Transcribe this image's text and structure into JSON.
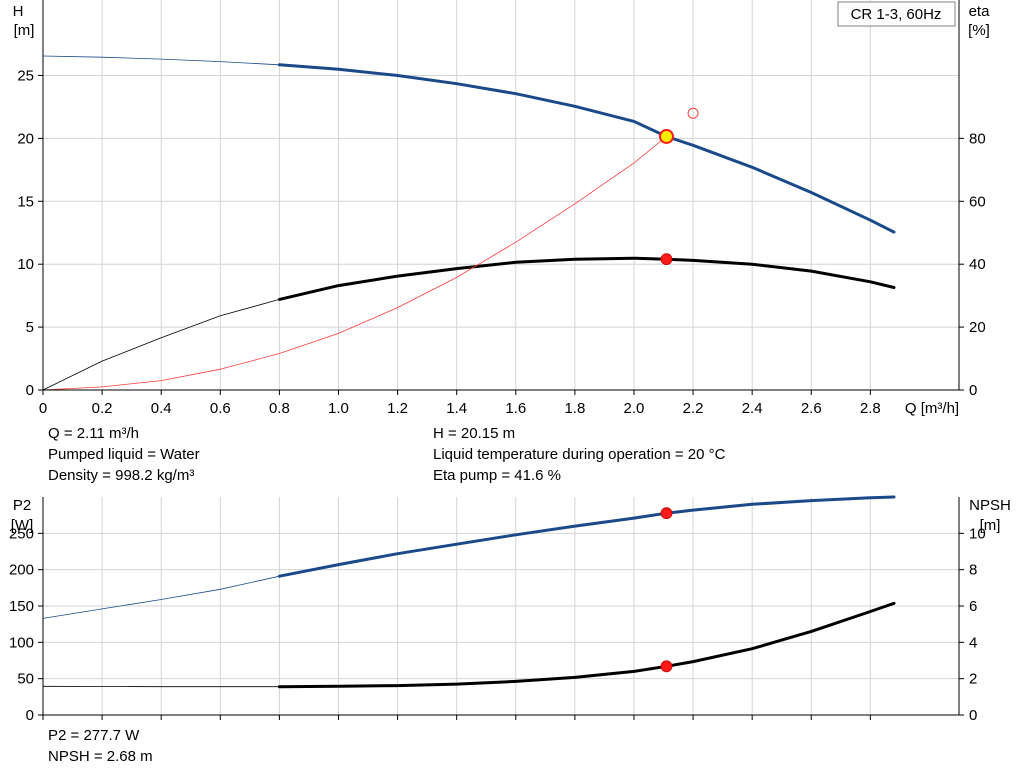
{
  "chart_data": [
    {
      "type": "line",
      "legend_box": "CR 1-3, 60Hz",
      "xlabel": "Q [m³/h]",
      "x_ticks": [
        "0",
        "0.2",
        "0.4",
        "0.6",
        "0.8",
        "1.0",
        "1.2",
        "1.4",
        "1.6",
        "1.8",
        "2.0",
        "2.2",
        "2.4",
        "2.6",
        "2.8"
      ],
      "xlim": [
        0,
        3.1
      ],
      "left_axis": {
        "label_line1": "H",
        "label_line2": "[m]",
        "range": [
          0,
          31
        ],
        "ticks": [
          "0",
          "5",
          "10",
          "15",
          "20",
          "25"
        ]
      },
      "right_axis": {
        "label_line1": "eta",
        "label_line2": "[%]",
        "range": [
          0,
          124
        ],
        "ticks": [
          "0",
          "20",
          "40",
          "60",
          "80"
        ]
      },
      "series": [
        {
          "color": "#1a4a8a",
          "axis": "left",
          "x": [
            0,
            0.2,
            0.4,
            0.6,
            0.8,
            1.0,
            1.2,
            1.4,
            1.6,
            1.8,
            2.0,
            2.11,
            2.2,
            2.4,
            2.6,
            2.8,
            2.88
          ],
          "y": [
            26.55,
            26.45,
            26.3,
            26.1,
            25.85,
            25.5,
            25.0,
            24.35,
            23.55,
            22.55,
            21.35,
            20.15,
            19.45,
            17.7,
            15.7,
            13.5,
            12.55
          ],
          "thin_until_x": 0.8
        },
        {
          "color": "#000000",
          "axis": "right",
          "x": [
            0,
            0.2,
            0.4,
            0.6,
            0.8,
            1.0,
            1.2,
            1.4,
            1.6,
            1.8,
            2.0,
            2.11,
            2.2,
            2.4,
            2.6,
            2.8,
            2.88
          ],
          "y": [
            0,
            9.2,
            16.6,
            23.6,
            28.8,
            33.2,
            36.2,
            38.6,
            40.6,
            41.6,
            41.9,
            41.6,
            41.2,
            40.0,
            37.8,
            34.4,
            32.6
          ],
          "thin_until_x": 0.8
        },
        {
          "color": "#ff3b3b",
          "axis": "left",
          "thin": true,
          "x": [
            0,
            0.2,
            0.4,
            0.6,
            0.8,
            1.0,
            1.2,
            1.4,
            1.6,
            1.8,
            2.0,
            2.11
          ],
          "y": [
            0,
            0.25,
            0.75,
            1.65,
            2.9,
            4.5,
            6.55,
            8.95,
            11.75,
            14.8,
            18.05,
            20.15
          ]
        }
      ],
      "markers": [
        {
          "x": 2.11,
          "y": 20.15,
          "axis": "left",
          "style": "yellow-ring"
        },
        {
          "x": 2.11,
          "y": 41.6,
          "axis": "right",
          "style": "red"
        },
        {
          "x": 2.2,
          "y": 22.0,
          "axis": "left",
          "style": "open-red"
        }
      ],
      "grid": true
    },
    {
      "type": "line",
      "xlim": [
        0,
        3.1
      ],
      "left_axis": {
        "label_line1": "P2",
        "label_line2": "[W]",
        "range": [
          0,
          300
        ],
        "ticks": [
          "0",
          "50",
          "100",
          "150",
          "200",
          "250"
        ]
      },
      "right_axis": {
        "label_line1": "NPSH",
        "label_line2": "[m]",
        "range": [
          0,
          12
        ],
        "ticks": [
          "0",
          "2",
          "4",
          "6",
          "8",
          "10"
        ]
      },
      "series": [
        {
          "color": "#1a4a8a",
          "axis": "left",
          "x": [
            0,
            0.2,
            0.4,
            0.6,
            0.8,
            1.0,
            1.2,
            1.4,
            1.6,
            1.8,
            2.0,
            2.11,
            2.2,
            2.4,
            2.6,
            2.8,
            2.88
          ],
          "y": [
            133,
            146,
            159,
            173,
            191,
            207,
            222,
            235,
            248,
            260,
            271,
            277.7,
            282,
            290,
            295,
            299,
            300
          ],
          "thin_until_x": 0.8
        },
        {
          "color": "#000000",
          "axis": "right",
          "x": [
            0,
            0.2,
            0.4,
            0.6,
            0.8,
            1.0,
            1.2,
            1.4,
            1.6,
            1.8,
            2.0,
            2.11,
            2.2,
            2.4,
            2.6,
            2.8,
            2.88
          ],
          "y": [
            1.58,
            1.57,
            1.56,
            1.56,
            1.56,
            1.58,
            1.62,
            1.7,
            1.85,
            2.07,
            2.4,
            2.68,
            2.94,
            3.65,
            4.6,
            5.7,
            6.15
          ],
          "thin_until_x": 0.8
        }
      ],
      "markers": [
        {
          "x": 2.11,
          "y": 277.7,
          "axis": "left",
          "style": "red"
        },
        {
          "x": 2.11,
          "y": 2.68,
          "axis": "right",
          "style": "red"
        }
      ],
      "grid": true
    }
  ],
  "info": {
    "q": "Q = 2.11 m³/h",
    "liquid": "Pumped liquid = Water",
    "density": "Density = 998.2 kg/m³",
    "h": "H = 20.15 m",
    "temp": "Liquid temperature during operation = 20 °C",
    "eta": "Eta pump = 41.6 %",
    "p2": "P2 = 277.7 W",
    "npsh": "NPSH = 2.68 m"
  }
}
